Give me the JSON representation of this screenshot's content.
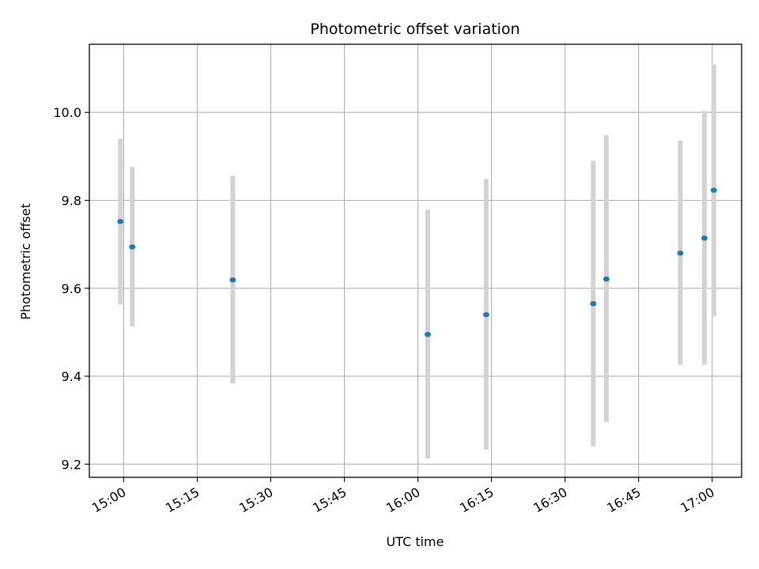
{
  "chart_data": {
    "type": "scatter",
    "title": "Photometric offset variation",
    "xlabel": "UTC time",
    "ylabel": "Photometric offset",
    "x_ticks": [
      "15:00",
      "15:15",
      "15:30",
      "15:45",
      "16:00",
      "16:15",
      "16:30",
      "16:45",
      "17:00"
    ],
    "y_ticks": [
      "9.2",
      "9.4",
      "9.6",
      "9.8",
      "10.0"
    ],
    "xlim": [
      "14:53",
      "17:06"
    ],
    "ylim": [
      9.17,
      10.155
    ],
    "grid": true,
    "series": [
      {
        "color": "#1f77b4",
        "errorbar_color": "#d3d3d3",
        "points": [
          {
            "x": "14:59:20",
            "y": 9.752,
            "ylow": 9.563,
            "yhigh": 9.94
          },
          {
            "x": "15:01:45",
            "y": 9.694,
            "ylow": 9.513,
            "yhigh": 9.876
          },
          {
            "x": "15:22:15",
            "y": 9.619,
            "ylow": 9.383,
            "yhigh": 9.856
          },
          {
            "x": "16:02:00",
            "y": 9.495,
            "ylow": 9.213,
            "yhigh": 9.779
          },
          {
            "x": "16:13:55",
            "y": 9.54,
            "ylow": 9.233,
            "yhigh": 9.848
          },
          {
            "x": "16:35:45",
            "y": 9.565,
            "ylow": 9.24,
            "yhigh": 9.89
          },
          {
            "x": "16:38:25",
            "y": 9.621,
            "ylow": 9.296,
            "yhigh": 9.948
          },
          {
            "x": "16:53:30",
            "y": 9.68,
            "ylow": 9.426,
            "yhigh": 9.936
          },
          {
            "x": "16:58:25",
            "y": 9.714,
            "ylow": 9.426,
            "yhigh": 10.003
          },
          {
            "x": "17:00:20",
            "y": 9.823,
            "ylow": 9.536,
            "yhigh": 10.109
          }
        ]
      }
    ]
  }
}
